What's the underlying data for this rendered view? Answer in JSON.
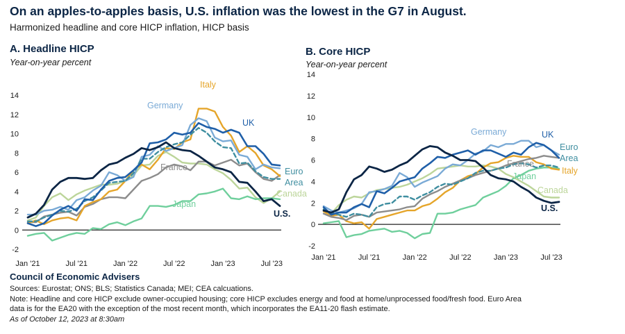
{
  "header": {
    "title": "On an apples-to-apples basis, U.S. inflation was the lowest in the G7 in August.",
    "subtitle": "Harmonized headline and core HICP inflation, HICP basis"
  },
  "footer": {
    "org": "Council of Economic Advisers",
    "sources": "Sources: Eurostat; ONS; BLS; Statistics Canada; MEI; CEA calcuations.",
    "note_line1": "Note: Headline and core HICP exclude owner-occupied housing; core HICP excludes energy and food at home/unprocessed food/fresh food. Euro Area",
    "note_line2": "data is for the EA20 with the exception of the most recent month, which incorporates the EA11-20 flash estimate.",
    "as_of": "As of October 12, 2023 at 8:30am"
  },
  "colors": {
    "us": "#0b2545",
    "uk": "#1f5fa8",
    "germany": "#7aaad6",
    "euro_area": "#3f8ea0",
    "france": "#8c8c8c",
    "italy": "#e5a52a",
    "canada": "#bcd59a",
    "japan": "#6fcf9c"
  },
  "chart_data": [
    {
      "type": "line",
      "panel": "A",
      "title": "A. Headline HICP",
      "ylabel": "Year-on-year percent",
      "xlim": [
        "2021-01",
        "2023-08"
      ],
      "ylim": [
        -2,
        14
      ],
      "yticks": [
        -2,
        0,
        2,
        4,
        6,
        8,
        10,
        12,
        14
      ],
      "xtick_labels": [
        "Jan '21",
        "Jul '21",
        "Jan '22",
        "Jul '22",
        "Jan '23",
        "Jul '23"
      ],
      "x": [
        "2021-01",
        "2021-02",
        "2021-03",
        "2021-04",
        "2021-05",
        "2021-06",
        "2021-07",
        "2021-08",
        "2021-09",
        "2021-10",
        "2021-11",
        "2021-12",
        "2022-01",
        "2022-02",
        "2022-03",
        "2022-04",
        "2022-05",
        "2022-06",
        "2022-07",
        "2022-08",
        "2022-09",
        "2022-10",
        "2022-11",
        "2022-12",
        "2023-01",
        "2023-02",
        "2023-03",
        "2023-04",
        "2023-05",
        "2023-06",
        "2023-07",
        "2023-08"
      ],
      "series": [
        {
          "key": "canada",
          "name": "Canada",
          "color": "#bcd59a",
          "dashed": false,
          "width": 2.4,
          "values": [
            1.0,
            1.3,
            2.5,
            3.4,
            3.8,
            3.1,
            3.7,
            4.1,
            4.4,
            4.7,
            4.7,
            4.8,
            5.1,
            5.7,
            6.7,
            6.8,
            7.7,
            8.1,
            7.6,
            7.0,
            6.9,
            6.9,
            6.8,
            6.3,
            5.9,
            5.2,
            4.3,
            4.4,
            3.4,
            2.8,
            3.3,
            4.0
          ]
        },
        {
          "key": "japan",
          "name": "Japan",
          "color": "#6fcf9c",
          "dashed": false,
          "width": 2.4,
          "values": [
            -0.6,
            -0.4,
            -0.3,
            -1.1,
            -0.8,
            -0.5,
            -0.3,
            -0.4,
            0.2,
            0.1,
            0.6,
            0.8,
            0.5,
            0.9,
            1.2,
            2.5,
            2.5,
            2.4,
            2.6,
            3.0,
            3.0,
            3.7,
            3.8,
            4.0,
            4.3,
            3.3,
            3.2,
            3.5,
            3.2,
            3.3,
            3.3,
            3.2
          ]
        },
        {
          "key": "france",
          "name": "France",
          "color": "#8c8c8c",
          "dashed": false,
          "width": 2.4,
          "values": [
            0.8,
            0.8,
            1.4,
            1.6,
            1.8,
            1.9,
            1.5,
            2.4,
            2.7,
            3.2,
            3.4,
            3.4,
            3.3,
            4.2,
            5.1,
            5.4,
            5.8,
            6.5,
            6.8,
            6.6,
            6.2,
            7.1,
            7.1,
            6.7,
            7.0,
            7.3,
            6.7,
            6.9,
            6.0,
            5.3,
            5.1,
            5.7
          ]
        },
        {
          "key": "italy",
          "name": "Italy",
          "color": "#e5a52a",
          "dashed": false,
          "width": 2.4,
          "values": [
            0.7,
            1.0,
            0.6,
            1.0,
            1.2,
            1.3,
            1.0,
            2.5,
            2.9,
            3.2,
            4.0,
            4.2,
            5.1,
            6.2,
            6.8,
            6.3,
            7.3,
            8.5,
            8.4,
            9.1,
            9.4,
            12.6,
            12.6,
            12.3,
            10.7,
            9.8,
            8.1,
            8.7,
            8.0,
            6.7,
            6.3,
            5.6
          ]
        },
        {
          "key": "germany",
          "name": "Germany",
          "color": "#7aaad6",
          "dashed": false,
          "width": 2.4,
          "values": [
            1.6,
            1.6,
            2.0,
            2.1,
            2.4,
            2.1,
            3.1,
            3.4,
            4.1,
            4.6,
            6.0,
            5.7,
            5.1,
            5.5,
            7.6,
            7.8,
            8.7,
            8.2,
            8.5,
            8.8,
            10.9,
            11.6,
            11.3,
            9.6,
            9.2,
            9.3,
            7.8,
            7.6,
            6.3,
            6.8,
            6.5,
            6.4
          ]
        },
        {
          "key": "euro_area",
          "name": "Euro Area",
          "color": "#3f8ea0",
          "dashed": true,
          "width": 2.4,
          "values": [
            0.9,
            0.9,
            1.3,
            1.6,
            2.0,
            1.9,
            2.2,
            3.0,
            3.4,
            4.1,
            4.9,
            5.0,
            5.1,
            5.9,
            7.4,
            7.4,
            8.1,
            8.6,
            8.9,
            9.1,
            9.9,
            10.6,
            10.1,
            9.2,
            8.6,
            8.5,
            6.9,
            7.0,
            6.1,
            5.5,
            5.3,
            5.3
          ]
        },
        {
          "key": "uk",
          "name": "UK",
          "color": "#1f5fa8",
          "dashed": false,
          "width": 2.6,
          "values": [
            0.7,
            0.4,
            0.7,
            1.5,
            2.1,
            2.5,
            2.0,
            3.2,
            3.1,
            4.2,
            5.1,
            5.4,
            5.5,
            6.2,
            7.0,
            9.0,
            9.1,
            9.4,
            10.1,
            9.9,
            10.1,
            11.1,
            10.7,
            10.5,
            10.1,
            10.4,
            10.1,
            8.7,
            8.7,
            7.9,
            6.8,
            6.7
          ]
        },
        {
          "key": "us",
          "name": "U.S.",
          "color": "#0b2545",
          "dashed": false,
          "width": 2.8,
          "values": [
            1.3,
            1.7,
            2.6,
            4.2,
            5.0,
            5.4,
            5.4,
            5.3,
            5.4,
            6.2,
            6.8,
            7.0,
            7.5,
            7.9,
            8.5,
            8.3,
            8.6,
            9.1,
            8.5,
            8.3,
            8.2,
            7.7,
            7.1,
            6.5,
            6.3,
            6.0,
            5.0,
            4.9,
            4.0,
            3.0,
            3.2,
            2.5
          ]
        }
      ],
      "labels": [
        {
          "key": "italy",
          "text": "Italy"
        },
        {
          "key": "germany",
          "text": "Germany"
        },
        {
          "key": "uk",
          "text": "UK"
        },
        {
          "key": "france",
          "text": "France"
        },
        {
          "key": "euro_area",
          "text": "Euro Area"
        },
        {
          "key": "canada",
          "text": "Canada"
        },
        {
          "key": "japan",
          "text": "Japan"
        },
        {
          "key": "us",
          "text": "U.S."
        }
      ]
    },
    {
      "type": "line",
      "panel": "B",
      "title": "B. Core HICP",
      "ylabel": "Year-on-year percent",
      "xlim": [
        "2021-01",
        "2023-08"
      ],
      "ylim": [
        -2,
        14
      ],
      "yticks": [
        -2,
        0,
        2,
        4,
        6,
        8,
        10,
        12,
        14
      ],
      "xtick_labels": [
        "Jan '21",
        "Jul '21",
        "Jan '22",
        "Jul '22",
        "Jan '23",
        "Jul '23"
      ],
      "x": [
        "2021-01",
        "2021-02",
        "2021-03",
        "2021-04",
        "2021-05",
        "2021-06",
        "2021-07",
        "2021-08",
        "2021-09",
        "2021-10",
        "2021-11",
        "2021-12",
        "2022-01",
        "2022-02",
        "2022-03",
        "2022-04",
        "2022-05",
        "2022-06",
        "2022-07",
        "2022-08",
        "2022-09",
        "2022-10",
        "2022-11",
        "2022-12",
        "2023-01",
        "2023-02",
        "2023-03",
        "2023-04",
        "2023-05",
        "2023-06",
        "2023-07",
        "2023-08"
      ],
      "series": [
        {
          "key": "japan",
          "name": "Japan",
          "color": "#6fcf9c",
          "dashed": false,
          "width": 2.4,
          "values": [
            0.1,
            0.2,
            0.3,
            -1.2,
            -1.0,
            -0.9,
            -0.6,
            -0.5,
            -0.4,
            -0.7,
            -0.6,
            -0.8,
            -1.3,
            -0.9,
            -0.8,
            1.0,
            1.0,
            1.1,
            1.4,
            1.6,
            1.8,
            2.5,
            2.8,
            3.1,
            3.6,
            4.3,
            4.6,
            5.0,
            5.2,
            5.3,
            5.3,
            5.2
          ]
        },
        {
          "key": "canada",
          "name": "Canada",
          "color": "#bcd59a",
          "dashed": false,
          "width": 2.4,
          "values": [
            1.4,
            1.0,
            1.8,
            2.3,
            2.6,
            2.5,
            2.9,
            3.2,
            3.3,
            3.4,
            3.5,
            3.7,
            4.0,
            4.3,
            4.7,
            5.2,
            5.3,
            5.4,
            5.5,
            5.4,
            5.4,
            5.5,
            5.4,
            5.2,
            4.7,
            4.4,
            4.0,
            3.6,
            3.1,
            2.6,
            2.5,
            2.5
          ]
        },
        {
          "key": "italy",
          "name": "Italy",
          "color": "#e5a52a",
          "dashed": false,
          "width": 2.4,
          "values": [
            1.2,
            0.8,
            0.9,
            0.3,
            0.1,
            0.2,
            -0.4,
            0.5,
            0.7,
            0.9,
            1.1,
            1.3,
            1.3,
            1.7,
            1.9,
            2.4,
            3.0,
            3.4,
            4.1,
            4.5,
            4.7,
            5.3,
            5.7,
            5.8,
            6.2,
            6.4,
            6.3,
            6.3,
            5.8,
            5.6,
            5.2,
            5.1
          ]
        },
        {
          "key": "france",
          "name": "France",
          "color": "#8c8c8c",
          "dashed": false,
          "width": 2.4,
          "values": [
            1.0,
            0.7,
            0.6,
            0.4,
            0.8,
            0.9,
            0.7,
            1.1,
            1.2,
            1.3,
            1.4,
            1.6,
            1.7,
            2.4,
            2.8,
            3.1,
            3.5,
            3.8,
            4.1,
            4.3,
            4.6,
            4.8,
            5.0,
            5.2,
            5.5,
            5.7,
            5.9,
            6.1,
            6.2,
            6.4,
            6.3,
            6.2
          ]
        },
        {
          "key": "germany",
          "name": "Germany",
          "color": "#7aaad6",
          "dashed": false,
          "width": 2.4,
          "values": [
            1.7,
            1.3,
            1.1,
            1.3,
            1.5,
            1.9,
            3.0,
            3.1,
            3.3,
            3.6,
            4.8,
            4.4,
            3.5,
            3.9,
            4.2,
            4.5,
            5.2,
            5.6,
            5.5,
            6.0,
            6.6,
            6.8,
            7.4,
            7.2,
            7.5,
            7.5,
            7.8,
            7.8,
            7.2,
            7.4,
            6.9,
            6.5
          ]
        },
        {
          "key": "euro_area",
          "name": "Euro Area",
          "color": "#3f8ea0",
          "dashed": true,
          "width": 2.4,
          "values": [
            1.4,
            1.1,
            0.9,
            0.7,
            1.0,
            0.9,
            0.7,
            1.6,
            1.9,
            2.0,
            2.6,
            2.6,
            2.3,
            2.7,
            3.0,
            3.5,
            3.8,
            3.7,
            4.0,
            4.3,
            4.8,
            5.0,
            5.0,
            5.2,
            5.3,
            5.6,
            5.7,
            5.6,
            5.3,
            5.5,
            5.5,
            5.3
          ]
        },
        {
          "key": "uk",
          "name": "UK",
          "color": "#1f5fa8",
          "dashed": false,
          "width": 2.6,
          "values": [
            1.6,
            0.9,
            1.1,
            1.1,
            1.6,
            1.9,
            1.6,
            3.1,
            2.9,
            3.4,
            4.0,
            4.2,
            4.4,
            5.2,
            5.7,
            6.3,
            6.2,
            6.5,
            6.7,
            6.9,
            6.5,
            6.9,
            6.9,
            6.6,
            6.3,
            6.7,
            6.5,
            7.2,
            7.6,
            7.4,
            6.9,
            6.2
          ]
        },
        {
          "key": "us",
          "name": "U.S.",
          "color": "#0b2545",
          "dashed": false,
          "width": 2.8,
          "values": [
            1.3,
            1.1,
            1.4,
            3.0,
            4.2,
            4.6,
            5.4,
            5.2,
            4.9,
            5.1,
            5.5,
            5.8,
            6.4,
            7.0,
            7.3,
            7.2,
            6.7,
            6.4,
            6.0,
            6.0,
            5.9,
            5.3,
            4.6,
            4.3,
            4.2,
            4.0,
            3.5,
            3.1,
            2.5,
            2.2,
            2.0,
            2.1
          ]
        }
      ],
      "labels": [
        {
          "key": "germany",
          "text": "Germany"
        },
        {
          "key": "uk",
          "text": "UK"
        },
        {
          "key": "euro_area",
          "text": "Euro Area"
        },
        {
          "key": "france",
          "text": "France"
        },
        {
          "key": "italy",
          "text": "Italy"
        },
        {
          "key": "japan",
          "text": "Japan"
        },
        {
          "key": "canada",
          "text": "Canada"
        },
        {
          "key": "us",
          "text": "U.S."
        }
      ]
    }
  ]
}
